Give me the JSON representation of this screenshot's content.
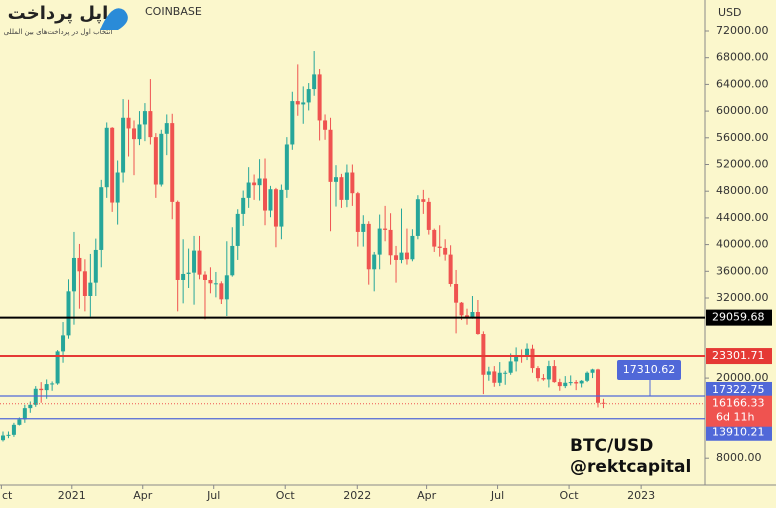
{
  "chart_data": {
    "type": "candlestick",
    "header": "COINBASE",
    "logo": {
      "name": "اپل پرداخت",
      "slogan": "انتخاب اول در پرداخت‌های بین المللی"
    },
    "axis_unit": "USD",
    "annotation": [
      "BTC/USD",
      "@rektcapital"
    ],
    "colors": {
      "up": "#26a69a",
      "down": "#ef5350",
      "background": "#fbf7cc"
    },
    "open": [
      10700,
      11400,
      11500,
      13000,
      13800,
      15500,
      16000,
      18400,
      18200,
      19100,
      19200,
      24000,
      26400,
      33000,
      38000,
      36000,
      32300,
      34300,
      39200,
      48600,
      57500,
      46300,
      50800,
      59000,
      57400,
      55800,
      58000,
      60000,
      56100,
      49000,
      56600,
      58200,
      46400,
      34700,
      35600,
      35800,
      39100,
      35500,
      34700,
      34200,
      34200,
      31800,
      35400,
      39800,
      44600,
      47000,
      49300,
      48900,
      49900,
      45100,
      48300,
      42700,
      48200,
      55000,
      61500,
      61000,
      61300,
      63300,
      65500,
      58600,
      57200,
      49400,
      50100,
      46700,
      50800,
      47700,
      41900,
      43100,
      36300,
      38500,
      42400,
      42200,
      38400,
      37700,
      38800,
      37800,
      41300,
      46800,
      46400,
      42200,
      39700,
      39500,
      38500,
      34100,
      31300,
      29400,
      29000,
      29900,
      26600,
      20500,
      21000,
      19300,
      20800,
      20800,
      22500,
      23300,
      23200,
      24400,
      21500,
      20000,
      19800,
      21800,
      19400,
      18800,
      19300,
      19400,
      19200,
      19600,
      20800,
      21300,
      16300
    ],
    "high": [
      12000,
      12000,
      13300,
      14100,
      16000,
      16500,
      18800,
      19400,
      19800,
      19500,
      24200,
      28400,
      34800,
      41900,
      40100,
      37800,
      38600,
      40900,
      49700,
      58300,
      57600,
      52600,
      61800,
      61700,
      58600,
      60000,
      61200,
      64800,
      56700,
      57200,
      59500,
      59600,
      46600,
      40800,
      39400,
      41300,
      41300,
      36000,
      36600,
      35900,
      34500,
      40500,
      42600,
      45300,
      48100,
      51600,
      50500,
      52800,
      52900,
      48800,
      48500,
      49000,
      56100,
      62900,
      67000,
      63700,
      64200,
      69000,
      66300,
      59500,
      59000,
      51900,
      50600,
      52000,
      52000,
      47900,
      44400,
      43500,
      38900,
      44500,
      45800,
      44700,
      39800,
      45400,
      42400,
      42300,
      47400,
      48200,
      47000,
      42400,
      42900,
      40800,
      39900,
      36200,
      31400,
      30400,
      32300,
      31700,
      27000,
      21700,
      21800,
      22400,
      21100,
      23700,
      24600,
      24300,
      25200,
      25000,
      21800,
      20600,
      22600,
      22700,
      19900,
      20300,
      20400,
      19700,
      19700,
      21000,
      21400,
      21400,
      16900
    ],
    "low": [
      10500,
      11000,
      11200,
      12900,
      13300,
      14800,
      15700,
      16300,
      16900,
      18100,
      19000,
      22300,
      25900,
      28000,
      30400,
      30000,
      29200,
      32300,
      36600,
      47000,
      44900,
      43000,
      49300,
      53200,
      50400,
      54900,
      55500,
      55000,
      47000,
      48700,
      53400,
      43800,
      30000,
      31200,
      33500,
      31000,
      34800,
      28800,
      32700,
      32100,
      31100,
      29300,
      35200,
      37700,
      42800,
      45500,
      46700,
      46600,
      42900,
      44100,
      39600,
      40800,
      47000,
      54200,
      59300,
      58100,
      60100,
      62300,
      55600,
      55700,
      42000,
      45700,
      45500,
      45600,
      45800,
      39700,
      39700,
      34000,
      33000,
      36300,
      40500,
      37000,
      34300,
      37200,
      37000,
      37500,
      40800,
      44600,
      41500,
      38900,
      38200,
      37600,
      33700,
      26700,
      28700,
      28000,
      28900,
      26500,
      17600,
      19600,
      18700,
      18800,
      19000,
      20500,
      21000,
      22300,
      22700,
      20800,
      19500,
      19600,
      18600,
      19300,
      18100,
      18500,
      18900,
      18200,
      18600,
      19400,
      20000,
      15600,
      15500
    ],
    "close": [
      11400,
      11500,
      13000,
      13800,
      15500,
      16000,
      18400,
      18200,
      19100,
      19200,
      24000,
      26400,
      33000,
      38000,
      36000,
      32300,
      34300,
      39200,
      48600,
      57500,
      46300,
      50800,
      59000,
      57400,
      55800,
      58000,
      60000,
      56100,
      49000,
      56600,
      58200,
      46400,
      34700,
      35600,
      35800,
      39100,
      35500,
      34700,
      34200,
      34200,
      31800,
      35400,
      39800,
      44600,
      47000,
      49300,
      48900,
      49900,
      45100,
      48300,
      42700,
      48200,
      55000,
      61500,
      61000,
      61300,
      63300,
      65500,
      58600,
      57200,
      49400,
      50100,
      46700,
      50800,
      47700,
      41900,
      43100,
      36300,
      38500,
      42400,
      42200,
      38400,
      37700,
      38800,
      37800,
      41300,
      46800,
      46400,
      42200,
      39700,
      39500,
      38500,
      34100,
      31300,
      29400,
      29000,
      29900,
      26600,
      20500,
      21000,
      19300,
      20800,
      20800,
      22500,
      23300,
      23200,
      24400,
      21500,
      20000,
      19800,
      21800,
      19400,
      18800,
      19300,
      19400,
      19200,
      19600,
      20800,
      21300,
      16300,
      16200
    ],
    "xlim": [
      -0.55,
      128.6
    ],
    "xticks": [
      {
        "value": -0.3,
        "label": "ct"
      },
      {
        "value": 12.6,
        "label": "2021"
      },
      {
        "value": 25.6,
        "label": "Apr"
      },
      {
        "value": 38.6,
        "label": "Jul"
      },
      {
        "value": 51.7,
        "label": "Oct"
      },
      {
        "value": 64.9,
        "label": "2022"
      },
      {
        "value": 77.6,
        "label": "Apr"
      },
      {
        "value": 90.6,
        "label": "Jul"
      },
      {
        "value": 103.7,
        "label": "Oct"
      },
      {
        "value": 116.9,
        "label": "2023"
      }
    ],
    "ylim": [
      3985,
      76644
    ],
    "yticks": [
      {
        "value": 72000,
        "label": "72000.00"
      },
      {
        "value": 68000,
        "label": "68000.00"
      },
      {
        "value": 64000,
        "label": "64000.00"
      },
      {
        "value": 60000,
        "label": "60000.00"
      },
      {
        "value": 56000,
        "label": "56000.00"
      },
      {
        "value": 52000,
        "label": "52000.00"
      },
      {
        "value": 48000,
        "label": "48000.00"
      },
      {
        "value": 44000,
        "label": "44000.00"
      },
      {
        "value": 40000,
        "label": "40000.00"
      },
      {
        "value": 36000,
        "label": "36000.00"
      },
      {
        "value": 32000,
        "label": "32000.00"
      },
      {
        "value": 20000,
        "label": "20000.00"
      },
      {
        "value": 8000,
        "label": "8000.00"
      }
    ],
    "levels": [
      {
        "value": 29059.68,
        "color": "#000000"
      },
      {
        "value": 23301.71,
        "color": "#e53935"
      },
      {
        "value": 17322.75,
        "color": "#5068d8"
      },
      {
        "value": 13910.21,
        "color": "#5068d8"
      }
    ],
    "current": {
      "value": 16166.33,
      "countdown": "6d 11h",
      "color": "#ef5350"
    },
    "callout": {
      "value": 17310.62,
      "color": "#5068d8"
    }
  }
}
